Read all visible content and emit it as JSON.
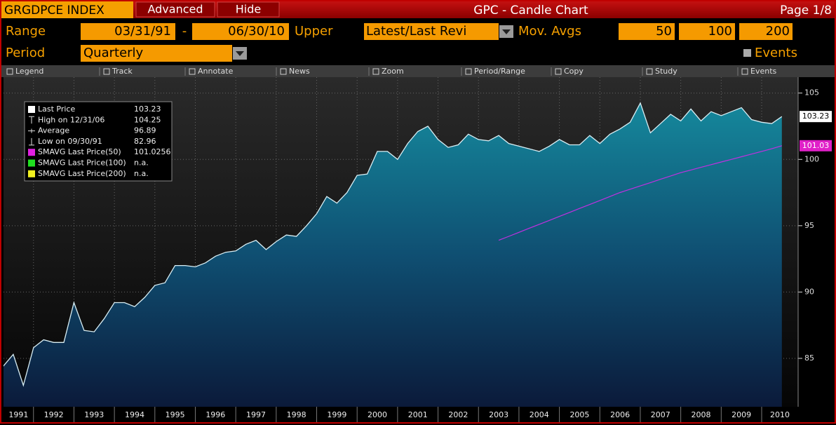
{
  "header": {
    "ticker": "GRGDPCE INDEX",
    "buttons": [
      "Advanced",
      "Hide"
    ],
    "title": "GPC - Candle Chart",
    "page": "Page 1/8"
  },
  "controls": {
    "range_label": "Range",
    "start_date": "03/31/91",
    "dash": "-",
    "end_date": "06/30/10",
    "upper_label": "Upper",
    "upper_value": "Latest/Last Revi",
    "mov_avgs_label": "Mov. Avgs",
    "mov_avgs": [
      "50",
      "100",
      "200"
    ],
    "period_label": "Period",
    "period_value": "Quarterly",
    "events_label": "Events"
  },
  "toolbar": [
    "Legend",
    "Track",
    "Annotate",
    "News",
    "Zoom",
    "Period/Range",
    "Copy",
    "Study",
    "Events"
  ],
  "chart_data": {
    "type": "area",
    "x_labels": [
      "1991",
      "1992",
      "1993",
      "1994",
      "1995",
      "1996",
      "1997",
      "1998",
      "1999",
      "2000",
      "2001",
      "2002",
      "2003",
      "2004",
      "2005",
      "2006",
      "2007",
      "2008",
      "2009",
      "2010"
    ],
    "series": [
      {
        "color": "#d8eef4",
        "end_label": "103.23",
        "values": [
          84.4,
          85.3,
          82.96,
          85.8,
          86.4,
          86.2,
          86.2,
          89.2,
          87.1,
          87.0,
          88.0,
          89.2,
          89.2,
          88.9,
          89.6,
          90.5,
          90.7,
          92.0,
          92.0,
          91.9,
          92.2,
          92.7,
          93.0,
          93.1,
          93.6,
          93.9,
          93.2,
          93.8,
          94.3,
          94.2,
          95.0,
          95.9,
          97.2,
          96.7,
          97.5,
          98.8,
          98.9,
          100.6,
          100.6,
          100.0,
          101.2,
          102.1,
          102.5,
          101.5,
          100.9,
          101.1,
          101.9,
          101.5,
          101.4,
          101.8,
          101.2,
          101.0,
          100.8,
          100.6,
          101.0,
          101.5,
          101.1,
          101.1,
          101.8,
          101.2,
          101.9,
          102.3,
          102.8,
          104.25,
          102.0,
          102.7,
          103.4,
          102.9,
          103.8,
          102.9,
          103.6,
          103.3,
          103.6,
          103.9,
          103.0,
          102.8,
          102.7,
          103.23
        ]
      },
      {
        "color": "#c030e0",
        "end_label": "101.03",
        "values": [
          null,
          null,
          null,
          null,
          null,
          null,
          null,
          null,
          null,
          null,
          null,
          null,
          null,
          null,
          null,
          null,
          null,
          null,
          null,
          null,
          null,
          null,
          null,
          null,
          null,
          null,
          null,
          null,
          null,
          null,
          null,
          null,
          null,
          null,
          null,
          null,
          null,
          null,
          null,
          null,
          null,
          null,
          null,
          null,
          null,
          null,
          null,
          null,
          null,
          93.9,
          94.2,
          94.5,
          94.8,
          95.1,
          95.4,
          95.7,
          96.0,
          96.3,
          96.6,
          96.9,
          97.2,
          97.5,
          97.75,
          98.0,
          98.25,
          98.5,
          98.75,
          99.0,
          99.2,
          99.4,
          99.6,
          99.8,
          100.0,
          100.2,
          100.4,
          100.6,
          100.8,
          101.03
        ]
      }
    ],
    "ylim": [
      81.35,
      106.2
    ],
    "yticks": [
      85,
      90,
      95,
      100,
      105
    ],
    "grid": true,
    "legend": [
      {
        "label": "Last Price",
        "value": "103.23",
        "color": "#ffffff"
      },
      {
        "label": "High on 12/31/06",
        "value": "104.25"
      },
      {
        "label": "Average",
        "value": "96.89"
      },
      {
        "label": "Low on 09/30/91",
        "value": "82.96"
      },
      {
        "label": "SMAVG Last Price(50)",
        "value": "101.0256",
        "color": "#e020e0"
      },
      {
        "label": "SMAVG Last Price(100)",
        "value": "n.a.",
        "color": "#20e020"
      },
      {
        "label": "SMAVG Last Price(200)",
        "value": "n.a.",
        "color": "#f0f020"
      }
    ]
  }
}
